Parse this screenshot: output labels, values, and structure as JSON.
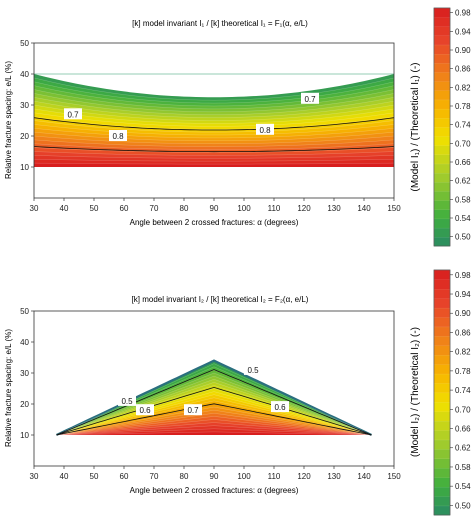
{
  "chart_data": [
    {
      "type": "heatmap",
      "title": "[k] model invariant I₁ / [k] theoretical  I₁ = F₁(α, e/L)",
      "xlabel": "Angle between 2 crossed fractures: α (degrees)",
      "ylabel": "Relative fracture spacing: e/L (%)",
      "xlim": [
        30,
        150
      ],
      "ylim": [
        0,
        50
      ],
      "xticks": [
        "30",
        "40",
        "50",
        "60",
        "70",
        "80",
        "90",
        "100",
        "110",
        "120",
        "130",
        "140",
        "150"
      ],
      "yticks": [
        "10",
        "20",
        "30",
        "40",
        "50"
      ],
      "domain": {
        "shape": "rectangle",
        "x": [
          30,
          150
        ],
        "y": [
          10,
          40
        ]
      },
      "contour_labels": [
        {
          "text": "0.7",
          "x": 43,
          "y": 27
        },
        {
          "text": "0.7",
          "x": 122,
          "y": 32
        },
        {
          "text": "0.8",
          "x": 58,
          "y": 20
        },
        {
          "text": "0.8",
          "x": 107,
          "y": 22
        }
      ],
      "value_range": [
        0.48,
        0.99
      ],
      "colorbar": {
        "label": "(Model I₁) / (Theoretical I₁) (-)",
        "ticks": [
          "0.50",
          "0.54",
          "0.58",
          "0.62",
          "0.66",
          "0.70",
          "0.74",
          "0.78",
          "0.82",
          "0.86",
          "0.90",
          "0.94",
          "0.98"
        ]
      },
      "grid": false
    },
    {
      "type": "heatmap",
      "title": "[k] model invariant I₂ / [k] theoretical  I₂ = F₂(α, e/L)",
      "xlabel": "Angle between 2 crossed fractures: α (degrees)",
      "ylabel": "Relative fracture spacing: e/L (%)",
      "xlim": [
        30,
        150
      ],
      "ylim": [
        0,
        50
      ],
      "xticks": [
        "30",
        "40",
        "50",
        "60",
        "70",
        "80",
        "90",
        "100",
        "110",
        "120",
        "130",
        "140",
        "150"
      ],
      "yticks": [
        "10",
        "20",
        "30",
        "40",
        "50"
      ],
      "domain": {
        "shape": "triangle",
        "x": [
          37.5,
          142.5
        ],
        "peak_x": 90,
        "peak_y": 34,
        "base_y": 10
      },
      "contour_labels": [
        {
          "text": "0.5",
          "x": 103,
          "y": 31
        },
        {
          "text": "0.5",
          "x": 61,
          "y": 21
        },
        {
          "text": "0.6",
          "x": 67,
          "y": 18
        },
        {
          "text": "0.6",
          "x": 112,
          "y": 19
        },
        {
          "text": "0.7",
          "x": 83,
          "y": 18
        }
      ],
      "value_range": [
        0.45,
        0.99
      ],
      "colorbar": {
        "label": "(Model I₂) / (Theoretical I₂) (-)",
        "ticks": [
          "0.50",
          "0.54",
          "0.58",
          "0.62",
          "0.66",
          "0.70",
          "0.74",
          "0.78",
          "0.82",
          "0.86",
          "0.90",
          "0.94",
          "0.98"
        ]
      },
      "grid": false
    }
  ]
}
